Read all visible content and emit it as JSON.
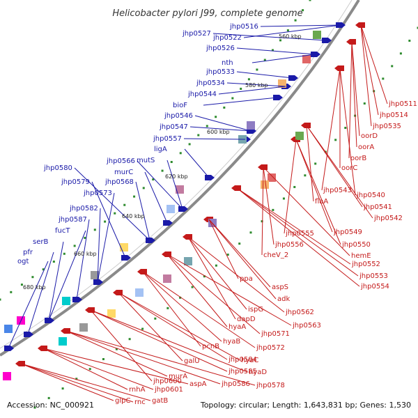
{
  "header": {
    "title": "Helicobacter pylori J99, complete genome"
  },
  "footer": {
    "accession": "Accession: NC_000921",
    "summary": "Topology: circular; Length: 1,643,831 bp; Genes: 1,530"
  },
  "colors": {
    "forward_strand": "#1a1aa8",
    "reverse_strand": "#c41a1a",
    "backbone": "#777777",
    "tick": "#2e8b2e"
  },
  "kbp_ticks": [
    "560 kbp",
    "580 kbp",
    "600 kbp",
    "620 kbp",
    "640 kbp",
    "660 kbp",
    "680 kbp"
  ],
  "forward_genes": [
    "jhp0516",
    "jhp0522",
    "jhp0527",
    "jhp0526",
    "nth",
    "jhp0533",
    "jhp0534",
    "jhp0544",
    "bioF",
    "jhp0546",
    "jhp0547",
    "jhp0557",
    "ligA",
    "jhp0566",
    "mutS",
    "murC",
    "jhp0568",
    "jhp0580",
    "jhp0579",
    "jhp0573",
    "jhp0582",
    "jhp0587",
    "fucT",
    "serB",
    "pfr",
    "ogt"
  ],
  "reverse_genes": [
    "jhp0511",
    "jhp0514",
    "jhp0535",
    "oorD",
    "oorA",
    "oorB",
    "oorC",
    "jhp0540",
    "jhp0543",
    "jhp0541",
    "flaA",
    "jhp0542",
    "jhp0549",
    "jhp0555",
    "jhp0550",
    "jhp0556",
    "hemE",
    "cheV_2",
    "jhp0552",
    "jhp0553",
    "jhp0554",
    "ppa",
    "aspS",
    "adk",
    "ispG",
    "jhp0562",
    "dapD",
    "jhp0563",
    "hyaA",
    "jhp0571",
    "hyaB",
    "jhp0572",
    "pcnB",
    "jhp0584",
    "hyaC",
    "galU",
    "jhp0585",
    "hyaD",
    "jhp0600",
    "murA",
    "jhp0586",
    "jhp0578",
    "jhp0601",
    "aspA",
    "rnhA",
    "gatB",
    "glpC",
    "rnc"
  ]
}
